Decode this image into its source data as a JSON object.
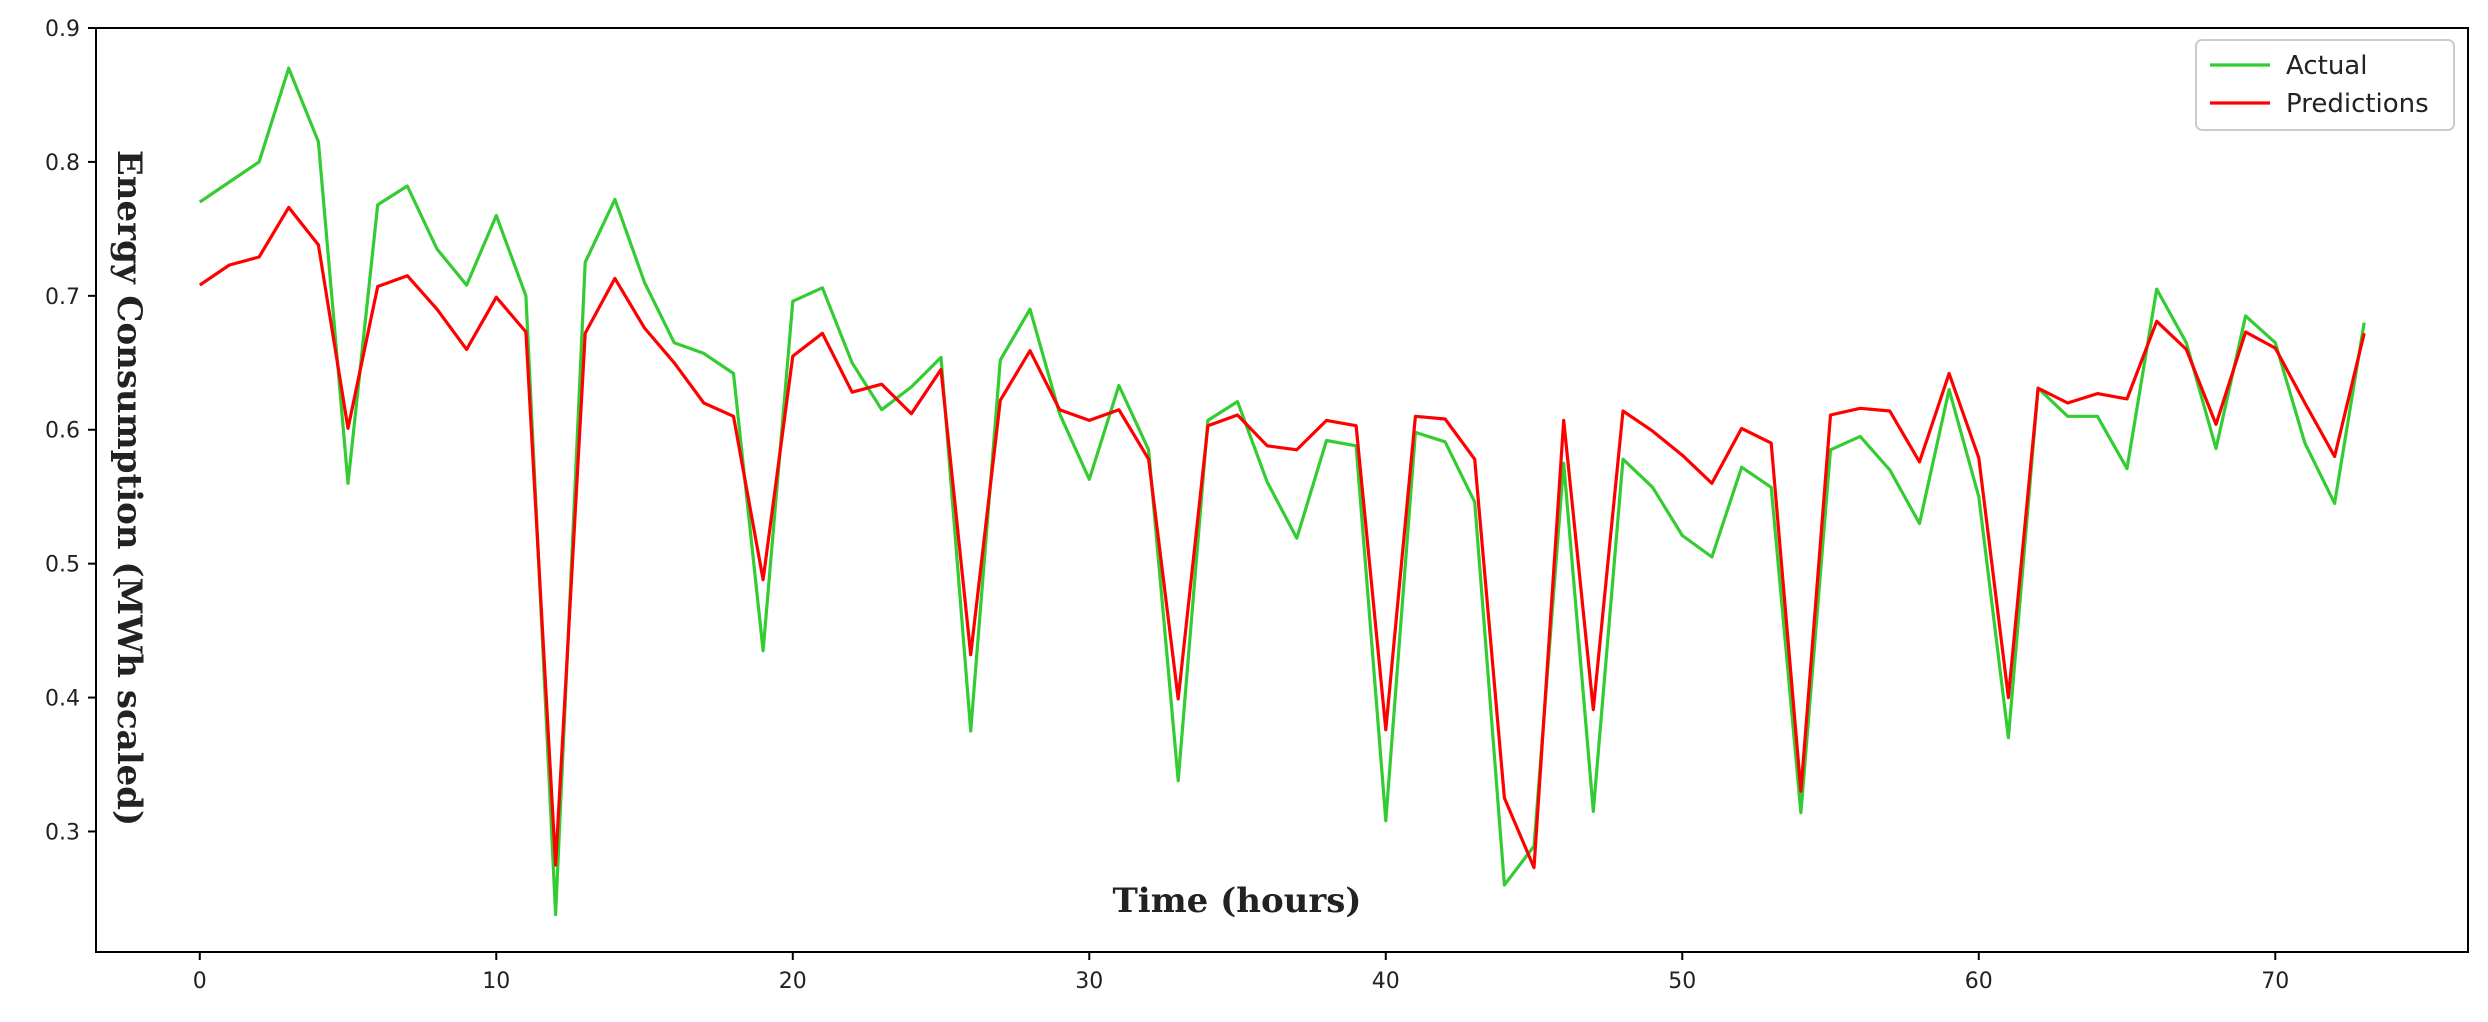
{
  "chart_data": {
    "type": "line",
    "title": "",
    "xlabel": "Time (hours)",
    "ylabel": "Energy Consumption (MWh scaled)",
    "xlim": [
      -3.5,
      76.5
    ],
    "ylim": [
      0.21,
      0.9
    ],
    "xticks": [
      0,
      10,
      20,
      30,
      40,
      50,
      60,
      70
    ],
    "xtick_labels": [
      "0",
      "10",
      "20",
      "30",
      "40",
      "50",
      "60",
      "70"
    ],
    "yticks": [
      0.3,
      0.4,
      0.5,
      0.6,
      0.7,
      0.8,
      0.9
    ],
    "ytick_labels": [
      "0.3",
      "0.4",
      "0.5",
      "0.6",
      "0.7",
      "0.8",
      "0.9"
    ],
    "grid": false,
    "legend_position": "top-right",
    "x": [
      0,
      1,
      2,
      3,
      4,
      5,
      6,
      7,
      8,
      9,
      10,
      11,
      12,
      13,
      14,
      15,
      16,
      17,
      18,
      19,
      20,
      21,
      22,
      23,
      24,
      25,
      26,
      27,
      28,
      29,
      30,
      31,
      32,
      33,
      34,
      35,
      36,
      37,
      38,
      39,
      40,
      41,
      42,
      43,
      44,
      45,
      46,
      47,
      48,
      49,
      50,
      51,
      52,
      53,
      54,
      55,
      56,
      57,
      58,
      59,
      60,
      61,
      62,
      63,
      64,
      65,
      66,
      67,
      68,
      69,
      70,
      71,
      72,
      73
    ],
    "series": [
      {
        "name": "Actual",
        "color": "#33cc33",
        "values": [
          0.77,
          0.785,
          0.8,
          0.87,
          0.815,
          0.56,
          0.768,
          0.782,
          0.735,
          0.708,
          0.76,
          0.7,
          0.238,
          0.725,
          0.772,
          0.71,
          0.665,
          0.657,
          0.642,
          0.435,
          0.696,
          0.706,
          0.65,
          0.615,
          0.632,
          0.654,
          0.375,
          0.652,
          0.69,
          0.612,
          0.563,
          0.633,
          0.585,
          0.338,
          0.607,
          0.621,
          0.561,
          0.519,
          0.592,
          0.588,
          0.308,
          0.598,
          0.591,
          0.546,
          0.26,
          0.289,
          0.575,
          0.315,
          0.578,
          0.557,
          0.521,
          0.505,
          0.572,
          0.557,
          0.314,
          0.585,
          0.595,
          0.57,
          0.53,
          0.63,
          0.55,
          0.37,
          0.631,
          0.61,
          0.61,
          0.571,
          0.705,
          0.665,
          0.586,
          0.685,
          0.665,
          0.59,
          0.545,
          0.68
        ]
      },
      {
        "name": "Predictions",
        "color": "#ff0000",
        "values": [
          0.708,
          0.723,
          0.729,
          0.766,
          0.738,
          0.601,
          0.707,
          0.715,
          0.69,
          0.66,
          0.699,
          0.673,
          0.275,
          0.672,
          0.713,
          0.676,
          0.65,
          0.62,
          0.61,
          0.488,
          0.655,
          0.672,
          0.628,
          0.634,
          0.612,
          0.645,
          0.432,
          0.622,
          0.659,
          0.615,
          0.607,
          0.615,
          0.578,
          0.399,
          0.603,
          0.611,
          0.588,
          0.585,
          0.607,
          0.603,
          0.376,
          0.61,
          0.608,
          0.578,
          0.325,
          0.273,
          0.607,
          0.391,
          0.614,
          0.599,
          0.581,
          0.56,
          0.601,
          0.59,
          0.33,
          0.611,
          0.616,
          0.614,
          0.576,
          0.642,
          0.579,
          0.4,
          0.631,
          0.62,
          0.627,
          0.623,
          0.681,
          0.66,
          0.604,
          0.673,
          0.661,
          0.62,
          0.58,
          0.672
        ]
      }
    ]
  }
}
